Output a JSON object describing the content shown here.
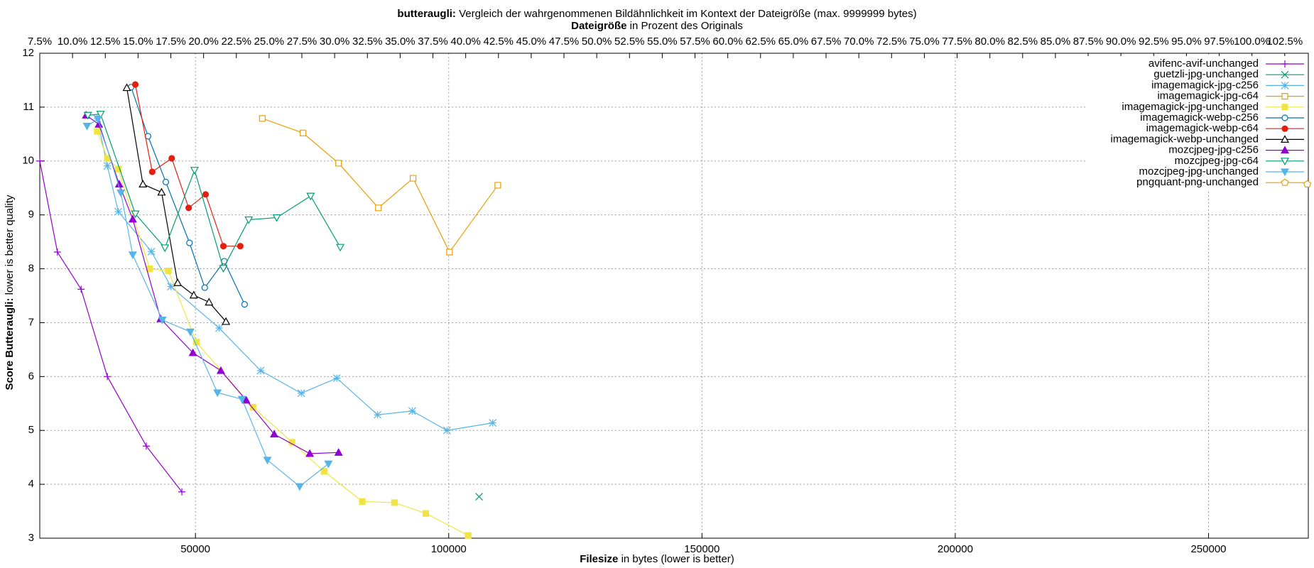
{
  "chart_data": {
    "type": "line",
    "title_bold": "butteraugli:",
    "title": "Vergleich der wahrgenommenen Bildähnlichkeit im Kontext der Dateigröße (max. 9999999 bytes)",
    "x2label_bold": "Dateigröße",
    "x2label": "in Prozent des Originals",
    "xlabel_bold": "Filesize",
    "xlabel": "in bytes (lower is better)",
    "ylabel_bold": "Score Butteraugli:",
    "ylabel": "lower is better quality",
    "xlim": [
      19270,
      269700
    ],
    "xticks": [
      50000,
      100000,
      150000,
      200000,
      250000
    ],
    "ylim": [
      3,
      12
    ],
    "yticks": [
      3,
      4,
      5,
      6,
      7,
      8,
      9,
      10,
      11,
      12
    ],
    "x2lim": [
      7.5,
      104.3
    ],
    "x2ticks": [
      {
        "value": 7.5,
        "label": "7.5%"
      },
      {
        "value": 10,
        "label": "10.0%"
      },
      {
        "value": 12.5,
        "label": "12.5%"
      },
      {
        "value": 15,
        "label": "15.0%"
      },
      {
        "value": 17.5,
        "label": "17.5%"
      },
      {
        "value": 20,
        "label": "20.0%"
      },
      {
        "value": 22.5,
        "label": "22.5%"
      },
      {
        "value": 25,
        "label": "25.0%"
      },
      {
        "value": 27.5,
        "label": "27.5%"
      },
      {
        "value": 30,
        "label": "30.0%"
      },
      {
        "value": 32.5,
        "label": "32.5%"
      },
      {
        "value": 35,
        "label": "35.0%"
      },
      {
        "value": 37.5,
        "label": "37.5%"
      },
      {
        "value": 40,
        "label": "40.0%"
      },
      {
        "value": 42.5,
        "label": "42.5%"
      },
      {
        "value": 45,
        "label": "45.0%"
      },
      {
        "value": 47.5,
        "label": "47.5%"
      },
      {
        "value": 50,
        "label": "50.0%"
      },
      {
        "value": 52.5,
        "label": "52.5%"
      },
      {
        "value": 55,
        "label": "55.0%"
      },
      {
        "value": 57.5,
        "label": "57.5%"
      },
      {
        "value": 60,
        "label": "60.0%"
      },
      {
        "value": 62.5,
        "label": "62.5%"
      },
      {
        "value": 65,
        "label": "65.0%"
      },
      {
        "value": 67.5,
        "label": "67.5%"
      },
      {
        "value": 70,
        "label": "70.0%"
      },
      {
        "value": 72.5,
        "label": "72.5%"
      },
      {
        "value": 75,
        "label": "75.0%"
      },
      {
        "value": 77.5,
        "label": "77.5%"
      },
      {
        "value": 80,
        "label": "80.0%"
      },
      {
        "value": 82.5,
        "label": "82.5%"
      },
      {
        "value": 85,
        "label": "85.0%"
      },
      {
        "value": 87.5,
        "label": "87.5%"
      },
      {
        "value": 90,
        "label": "90.0%"
      },
      {
        "value": 92.5,
        "label": "92.5%"
      },
      {
        "value": 95,
        "label": "95.0%"
      },
      {
        "value": 97.5,
        "label": "97.5%"
      },
      {
        "value": 100,
        "label": "100.0%"
      },
      {
        "value": 102.5,
        "label": "102.5%"
      }
    ],
    "grid": true,
    "legend": "top-right",
    "series": [
      {
        "name": "avifenc-avif-unchanged",
        "color": "#9400d3",
        "marker": "plus",
        "x": [
          19270,
          22750,
          27430,
          32610,
          40300,
          47320
        ],
        "values": [
          10.0,
          8.31,
          7.62,
          6.0,
          4.71,
          3.86
        ]
      },
      {
        "name": "guetzli-jpg-unchanged",
        "color": "#009e73",
        "marker": "cross",
        "x": [
          106000
        ],
        "values": [
          3.77
        ]
      },
      {
        "name": "imagemagick-jpg-c256",
        "color": "#56b4e9",
        "marker": "star",
        "x": [
          30600,
          32610,
          34780,
          41300,
          45150,
          54680,
          62870,
          70900,
          77920,
          85950,
          92800,
          99660,
          108690
        ],
        "values": [
          10.79,
          9.91,
          9.06,
          8.32,
          7.67,
          6.9,
          6.11,
          5.69,
          5.97,
          5.29,
          5.36,
          5.0,
          5.14
        ]
      },
      {
        "name": "imagemagick-jpg-c64",
        "color": "#e69f00",
        "marker": "square-open",
        "x": [
          63200,
          71240,
          78260,
          86120,
          92970,
          100160,
          109690
        ],
        "values": [
          10.79,
          10.52,
          9.96,
          9.13,
          9.68,
          8.31,
          9.55
        ]
      },
      {
        "name": "imagemagick-jpg-unchanged",
        "color": "#f0e442",
        "marker": "square",
        "x": [
          30600,
          32610,
          34780,
          40970,
          44650,
          50170,
          61370,
          69060,
          75410,
          82940,
          89290,
          95480,
          103840
        ],
        "values": [
          10.55,
          10.05,
          9.85,
          8.0,
          7.96,
          6.64,
          5.43,
          4.78,
          4.24,
          3.68,
          3.66,
          3.46,
          3.05
        ]
      },
      {
        "name": "imagemagick-webp-c256",
        "color": "#0072b2",
        "marker": "circle-open",
        "x": [
          37290,
          40640,
          44150,
          48830,
          51840,
          55680,
          59700
        ],
        "values": [
          11.37,
          10.46,
          9.61,
          8.48,
          7.65,
          8.14,
          7.34
        ]
      },
      {
        "name": "imagemagick-webp-c64",
        "color": "#e51e10",
        "marker": "circle",
        "x": [
          38130,
          41470,
          45320,
          48660,
          52010,
          55520,
          58860
        ],
        "values": [
          11.42,
          9.8,
          10.05,
          9.13,
          9.38,
          8.42,
          8.42
        ]
      },
      {
        "name": "imagemagick-webp-unchanged",
        "color": "#000000",
        "marker": "triangle-open",
        "x": [
          36450,
          39630,
          43310,
          46490,
          49670,
          52680,
          56020
        ],
        "values": [
          11.36,
          9.57,
          9.42,
          7.74,
          7.51,
          7.38,
          7.02
        ]
      },
      {
        "name": "mozcjpeg-jpg-c256",
        "color": "#9400d3",
        "marker": "triangle",
        "x": [
          28430,
          30940,
          34950,
          37620,
          43140,
          49500,
          55020,
          60030,
          65550,
          72570,
          78260
        ],
        "values": [
          10.85,
          10.68,
          9.57,
          8.92,
          7.07,
          6.44,
          6.11,
          5.56,
          4.93,
          4.57,
          4.59
        ]
      },
      {
        "name": "mozcjpeg-jpg-c64",
        "color": "#009e73",
        "marker": "triangle-down-open",
        "x": [
          28760,
          31270,
          38130,
          43980,
          49830,
          55520,
          60530,
          66050,
          72740,
          78590
        ],
        "values": [
          10.85,
          10.87,
          9.02,
          8.39,
          9.83,
          8.01,
          8.91,
          8.95,
          9.35,
          8.4
        ]
      },
      {
        "name": "mozcjpeg-jpg-unchanged",
        "color": "#56b4e9",
        "marker": "triangle-down",
        "x": [
          28600,
          30770,
          35280,
          37620,
          43470,
          48990,
          54350,
          59200,
          64210,
          70570,
          76250
        ],
        "values": [
          10.65,
          10.78,
          9.41,
          8.26,
          7.05,
          6.83,
          5.7,
          5.58,
          4.45,
          3.96,
          4.38
        ]
      },
      {
        "name": "pngquant-png-unchanged",
        "color": "#e69f00",
        "marker": "pentagon-open",
        "x": [
          269500
        ],
        "values": [
          9.57
        ]
      }
    ]
  }
}
